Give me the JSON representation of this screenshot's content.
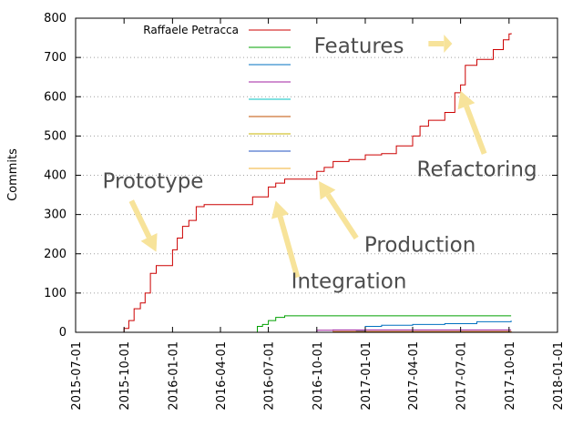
{
  "chart_data": {
    "type": "line",
    "title": "",
    "xlabel": "",
    "ylabel": "Commits",
    "xlim": [
      "2015-07-01",
      "2018-01-01"
    ],
    "ylim": [
      0,
      800
    ],
    "yticks": [
      0,
      100,
      200,
      300,
      400,
      500,
      600,
      700,
      800
    ],
    "xticks": [
      "2015-07-01",
      "2015-10-01",
      "2016-01-01",
      "2016-04-01",
      "2016-07-01",
      "2016-10-01",
      "2017-01-01",
      "2017-04-01",
      "2017-07-01",
      "2017-10-01",
      "2018-01-01"
    ],
    "grid": "horizontal dotted",
    "legend_placement": "top-left",
    "series": [
      {
        "name": "Raffaele Petracca",
        "color": "#cc0000",
        "points": [
          [
            "2015-09-25",
            0
          ],
          [
            "2015-10-01",
            10
          ],
          [
            "2015-10-10",
            30
          ],
          [
            "2015-10-20",
            60
          ],
          [
            "2015-11-01",
            75
          ],
          [
            "2015-11-10",
            100
          ],
          [
            "2015-11-20",
            150
          ],
          [
            "2015-12-01",
            170
          ],
          [
            "2016-01-01",
            210
          ],
          [
            "2016-01-10",
            240
          ],
          [
            "2016-01-20",
            270
          ],
          [
            "2016-02-01",
            285
          ],
          [
            "2016-02-15",
            320
          ],
          [
            "2016-03-01",
            325
          ],
          [
            "2016-05-01",
            325
          ],
          [
            "2016-06-01",
            345
          ],
          [
            "2016-07-01",
            370
          ],
          [
            "2016-07-15",
            380
          ],
          [
            "2016-08-01",
            390
          ],
          [
            "2016-09-15",
            390
          ],
          [
            "2016-10-01",
            410
          ],
          [
            "2016-10-15",
            420
          ],
          [
            "2016-11-01",
            435
          ],
          [
            "2016-12-01",
            440
          ],
          [
            "2017-01-01",
            452
          ],
          [
            "2017-02-01",
            455
          ],
          [
            "2017-03-01",
            475
          ],
          [
            "2017-04-01",
            500
          ],
          [
            "2017-04-15",
            525
          ],
          [
            "2017-05-01",
            540
          ],
          [
            "2017-06-01",
            560
          ],
          [
            "2017-06-20",
            610
          ],
          [
            "2017-07-01",
            630
          ],
          [
            "2017-07-10",
            680
          ],
          [
            "2017-08-01",
            695
          ],
          [
            "2017-09-01",
            720
          ],
          [
            "2017-09-20",
            745
          ],
          [
            "2017-10-01",
            760
          ],
          [
            "2017-10-05",
            762
          ]
        ]
      },
      {
        "name": "",
        "color": "#00a000",
        "points": [
          [
            "2016-06-01",
            0
          ],
          [
            "2016-06-10",
            15
          ],
          [
            "2016-06-20",
            20
          ],
          [
            "2016-07-01",
            30
          ],
          [
            "2016-07-15",
            38
          ],
          [
            "2016-08-01",
            42
          ],
          [
            "2017-10-05",
            42
          ]
        ]
      },
      {
        "name": "",
        "color": "#0070c0",
        "points": [
          [
            "2016-10-01",
            0
          ],
          [
            "2016-12-15",
            3
          ],
          [
            "2017-01-01",
            15
          ],
          [
            "2017-02-01",
            18
          ],
          [
            "2017-04-01",
            20
          ],
          [
            "2017-06-01",
            22
          ],
          [
            "2017-08-01",
            27
          ],
          [
            "2017-10-05",
            30
          ]
        ]
      },
      {
        "name": "",
        "color": "#a020a0",
        "points": [
          [
            "2016-09-15",
            0
          ],
          [
            "2016-10-01",
            5
          ],
          [
            "2016-11-01",
            6
          ],
          [
            "2017-10-05",
            6
          ]
        ]
      },
      {
        "name": "",
        "color": "#00c0c0",
        "points": [
          [
            "2016-07-01",
            0
          ],
          [
            "2017-10-05",
            1
          ]
        ]
      },
      {
        "name": "",
        "color": "#c05000",
        "points": [
          [
            "2016-09-01",
            0
          ],
          [
            "2016-11-01",
            2
          ],
          [
            "2017-10-05",
            3
          ]
        ]
      },
      {
        "name": "",
        "color": "#c8b400",
        "points": [
          [
            "2016-07-01",
            0
          ],
          [
            "2017-10-05",
            1
          ]
        ]
      },
      {
        "name": "",
        "color": "#2050c0",
        "points": [
          [
            "2016-07-01",
            0
          ],
          [
            "2017-10-05",
            1
          ]
        ]
      },
      {
        "name": "",
        "color": "#f0b030",
        "points": [
          [
            "2016-07-01",
            0
          ],
          [
            "2017-10-05",
            1
          ]
        ]
      }
    ],
    "annotations": [
      {
        "text": "Prototype",
        "x": "2015-11-25",
        "y": 368
      },
      {
        "text": "Integration",
        "x": "2016-12-01",
        "y": 112
      },
      {
        "text": "Production",
        "x": "2017-04-15",
        "y": 205
      },
      {
        "text": "Refactoring",
        "x": "2017-08-01",
        "y": 398
      },
      {
        "text": "Features",
        "x": "2016-12-20",
        "y": 712
      }
    ],
    "arrows": [
      {
        "from": [
          "2015-10-15",
          335
        ],
        "to": [
          "2015-12-01",
          205
        ]
      },
      {
        "from": [
          "2016-08-25",
          140
        ],
        "to": [
          "2016-07-15",
          335
        ]
      },
      {
        "from": [
          "2016-12-15",
          240
        ],
        "to": [
          "2016-10-05",
          385
        ]
      },
      {
        "from": [
          "2017-08-15",
          455
        ],
        "to": [
          "2017-07-01",
          615
        ]
      },
      {
        "from": [
          "2017-05-01",
          735
        ],
        "to": [
          "2017-06-15",
          735
        ]
      }
    ],
    "annotation_color": "#f7e39a"
  }
}
